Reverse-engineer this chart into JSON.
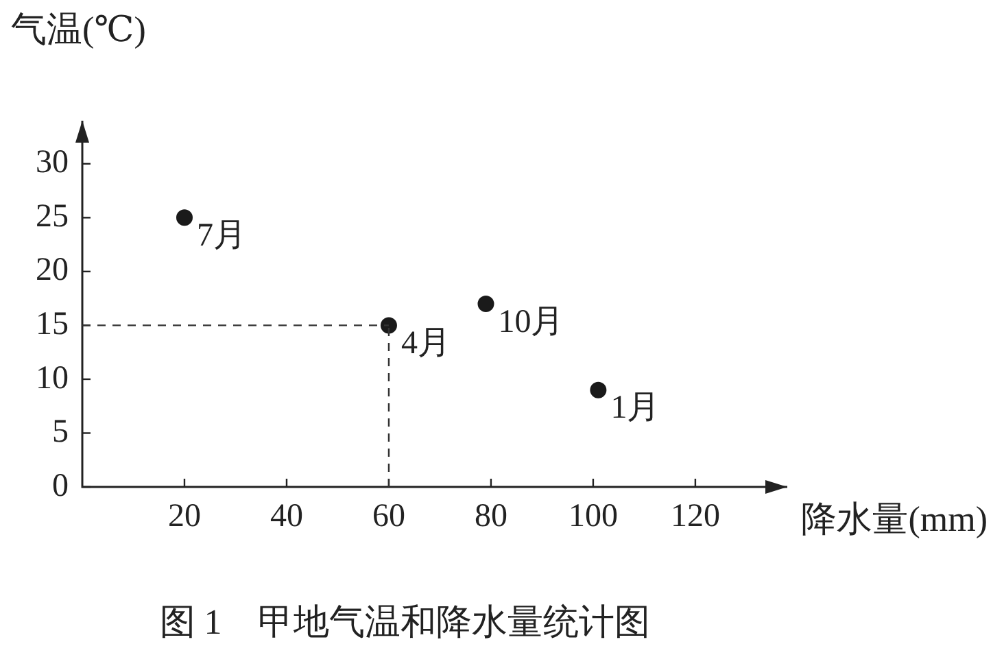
{
  "chart_data": {
    "type": "scatter",
    "title": "图 1　甲地气温和降水量统计图",
    "xlabel": "降水量(mm)",
    "ylabel": "气温(℃)",
    "x": [
      20,
      60,
      79,
      101
    ],
    "values": [
      25,
      15,
      17,
      9
    ],
    "color": "#1a1a1a",
    "marker": "circle",
    "xlim": [
      0,
      138
    ],
    "xticks": [
      20,
      40,
      60,
      80,
      100,
      120
    ],
    "ylim": [
      0,
      34
    ],
    "yticks": [
      0,
      5,
      10,
      15,
      20,
      25,
      30
    ],
    "grid": false,
    "legend": false,
    "annotations": [
      {
        "text": "7月",
        "x": 20,
        "y": 25
      },
      {
        "text": "4月",
        "x": 60,
        "y": 15
      },
      {
        "text": "10月",
        "x": 79,
        "y": 17
      },
      {
        "text": "1月",
        "x": 101,
        "y": 9
      }
    ],
    "ref_lines": [
      {
        "axis": "x",
        "value": 60,
        "line_style": "dashed",
        "color": "#333333"
      },
      {
        "axis": "y",
        "value": 15,
        "line_style": "dashed",
        "color": "#333333"
      }
    ]
  }
}
